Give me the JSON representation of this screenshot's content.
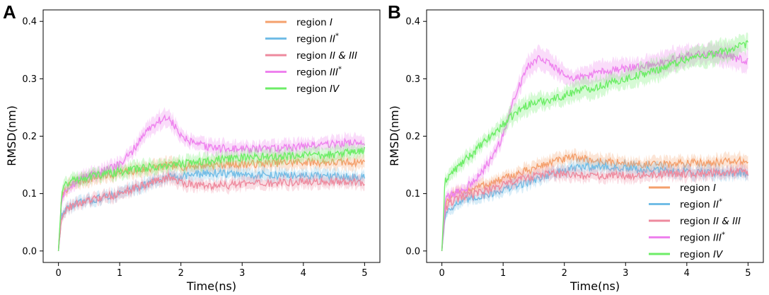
{
  "chart_data": [
    {
      "panel": "A",
      "type": "line",
      "xlabel": "Time(ns)",
      "ylabel": "RMSD(nm)",
      "xlim": [
        -0.25,
        5.25
      ],
      "ylim": [
        -0.02,
        0.42
      ],
      "xticks": [
        0,
        1,
        2,
        3,
        4,
        5
      ],
      "yticks": [
        0.0,
        0.1,
        0.2,
        0.3,
        0.4
      ],
      "xtick_labels": [
        "0",
        "1",
        "2",
        "3",
        "4",
        "5"
      ],
      "ytick_labels": [
        "0.0",
        "0.1",
        "0.2",
        "0.3",
        "0.4"
      ],
      "legend_placement": "top-right",
      "x": [
        0,
        0.05,
        0.1,
        0.2,
        0.4,
        0.6,
        0.8,
        1.0,
        1.2,
        1.4,
        1.6,
        1.8,
        2.0,
        2.2,
        2.5,
        3.0,
        3.5,
        4.0,
        4.5,
        5.0
      ],
      "series": [
        {
          "name_main": "region ",
          "name_roman": "I",
          "name_sup": "",
          "color": "#f4a06c",
          "values": [
            0.0,
            0.09,
            0.105,
            0.115,
            0.123,
            0.128,
            0.132,
            0.136,
            0.139,
            0.142,
            0.146,
            0.149,
            0.147,
            0.148,
            0.15,
            0.151,
            0.153,
            0.155,
            0.154,
            0.155
          ]
        },
        {
          "name_main": "region ",
          "name_roman": "II",
          "name_sup": "*",
          "color": "#72bde6",
          "values": [
            0.0,
            0.06,
            0.07,
            0.078,
            0.085,
            0.09,
            0.095,
            0.1,
            0.108,
            0.115,
            0.122,
            0.128,
            0.131,
            0.133,
            0.136,
            0.133,
            0.132,
            0.131,
            0.129,
            0.128
          ]
        },
        {
          "name_main": "region ",
          "name_roman": "II & III",
          "name_sup": "",
          "color": "#ee8a9e",
          "values": [
            0.0,
            0.06,
            0.07,
            0.078,
            0.085,
            0.09,
            0.095,
            0.1,
            0.108,
            0.115,
            0.122,
            0.128,
            0.12,
            0.116,
            0.113,
            0.116,
            0.118,
            0.121,
            0.12,
            0.12
          ]
        },
        {
          "name_main": "region ",
          "name_roman": "III",
          "name_sup": "*",
          "color": "#ee82ee",
          "values": [
            0.0,
            0.09,
            0.105,
            0.115,
            0.128,
            0.135,
            0.142,
            0.15,
            0.172,
            0.205,
            0.225,
            0.233,
            0.2,
            0.187,
            0.18,
            0.177,
            0.178,
            0.183,
            0.187,
            0.19
          ]
        },
        {
          "name_main": "region ",
          "name_roman": "IV",
          "name_sup": "",
          "color": "#6ded67",
          "values": [
            0.0,
            0.1,
            0.115,
            0.122,
            0.128,
            0.132,
            0.135,
            0.138,
            0.142,
            0.145,
            0.147,
            0.149,
            0.152,
            0.155,
            0.158,
            0.163,
            0.165,
            0.166,
            0.168,
            0.175
          ]
        }
      ]
    },
    {
      "panel": "B",
      "type": "line",
      "xlabel": "Time(ns)",
      "ylabel": "RMSD(nm)",
      "xlim": [
        -0.25,
        5.25
      ],
      "ylim": [
        -0.02,
        0.42
      ],
      "xticks": [
        0,
        1,
        2,
        3,
        4,
        5
      ],
      "yticks": [
        0.0,
        0.1,
        0.2,
        0.3,
        0.4
      ],
      "xtick_labels": [
        "0",
        "1",
        "2",
        "3",
        "4",
        "5"
      ],
      "ytick_labels": [
        "0.0",
        "0.1",
        "0.2",
        "0.3",
        "0.4"
      ],
      "legend_placement": "lower-right",
      "x": [
        0,
        0.05,
        0.1,
        0.2,
        0.4,
        0.6,
        0.8,
        1.0,
        1.2,
        1.4,
        1.6,
        1.8,
        2.0,
        2.2,
        2.5,
        3.0,
        3.5,
        4.0,
        4.5,
        5.0
      ],
      "series": [
        {
          "name_main": "region ",
          "name_roman": "I",
          "name_sup": "",
          "color": "#f4a06c",
          "values": [
            0.0,
            0.08,
            0.09,
            0.097,
            0.105,
            0.112,
            0.118,
            0.125,
            0.133,
            0.14,
            0.148,
            0.155,
            0.16,
            0.163,
            0.157,
            0.152,
            0.15,
            0.153,
            0.155,
            0.157
          ]
        },
        {
          "name_main": "region ",
          "name_roman": "II",
          "name_sup": "*",
          "color": "#72bde6",
          "values": [
            0.0,
            0.06,
            0.072,
            0.08,
            0.088,
            0.095,
            0.1,
            0.107,
            0.113,
            0.12,
            0.128,
            0.135,
            0.14,
            0.145,
            0.148,
            0.143,
            0.14,
            0.138,
            0.137,
            0.135
          ]
        },
        {
          "name_main": "region ",
          "name_roman": "II & III",
          "name_sup": "",
          "color": "#ee8a9e",
          "values": [
            0.0,
            0.07,
            0.08,
            0.088,
            0.095,
            0.102,
            0.108,
            0.115,
            0.122,
            0.128,
            0.133,
            0.135,
            0.133,
            0.132,
            0.13,
            0.132,
            0.133,
            0.135,
            0.136,
            0.138
          ]
        },
        {
          "name_main": "region ",
          "name_roman": "III",
          "name_sup": "*",
          "color": "#ee82ee",
          "values": [
            0.0,
            0.085,
            0.095,
            0.1,
            0.11,
            0.13,
            0.16,
            0.2,
            0.275,
            0.32,
            0.34,
            0.325,
            0.305,
            0.3,
            0.31,
            0.318,
            0.325,
            0.34,
            0.345,
            0.33
          ]
        },
        {
          "name_main": "region ",
          "name_roman": "IV",
          "name_sup": "",
          "color": "#6ded67",
          "values": [
            0.0,
            0.12,
            0.13,
            0.14,
            0.16,
            0.18,
            0.2,
            0.22,
            0.24,
            0.255,
            0.26,
            0.265,
            0.27,
            0.28,
            0.285,
            0.3,
            0.315,
            0.335,
            0.345,
            0.36
          ]
        }
      ]
    }
  ]
}
